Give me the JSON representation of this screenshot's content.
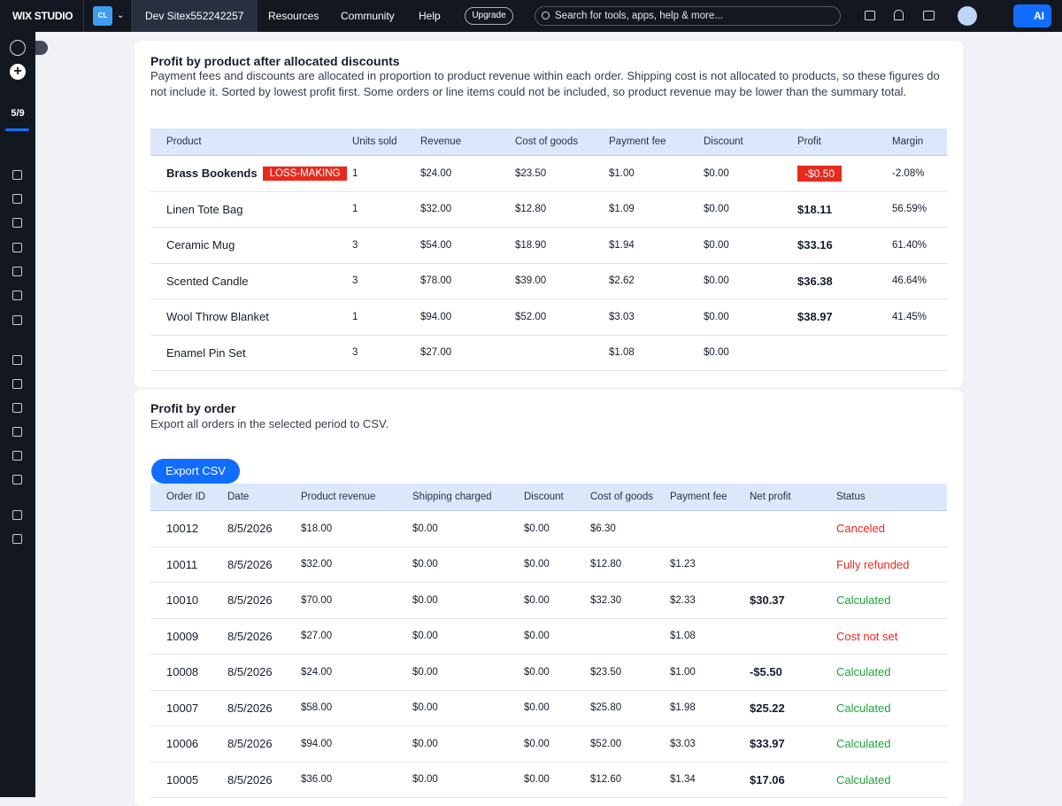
{
  "topbar": {
    "brand": "WIX STUDIO",
    "site_initials": "CL",
    "site_name": "Dev Sitex552242257",
    "nav": [
      "Resources",
      "Community",
      "Help"
    ],
    "upgrade": "Upgrade",
    "search_placeholder": "Search for tools, apps, help & more...",
    "ai_button": "AI"
  },
  "sidebar": {
    "progress": "5/9"
  },
  "products": {
    "title": "Profit by product after allocated discounts",
    "description": "Payment fees and discounts are allocated in proportion to product revenue within each order. Shipping cost is not allocated to products, so these figures do not include it. Sorted by lowest profit first. Some orders or line items could not be included, so product revenue may be lower than the summary total.",
    "columns": [
      "Product",
      "Units sold",
      "Revenue",
      "Cost of goods",
      "Payment fee",
      "Discount",
      "Profit",
      "Margin"
    ],
    "rows": [
      {
        "cells": [
          "Brass Bookends",
          "1",
          "$24.00",
          "$23.50",
          "$1.00",
          "$0.00",
          "-$0.50",
          "-2.08%"
        ],
        "badge": "LOSS-MAKING",
        "badge_color": "#e62a1e"
      },
      {
        "cells": [
          "Linen Tote Bag",
          "1",
          "$32.00",
          "$12.80",
          "$1.09",
          "$0.00",
          "$18.11",
          "56.59%"
        ]
      },
      {
        "cells": [
          "Ceramic Mug",
          "3",
          "$54.00",
          "$18.90",
          "$1.94",
          "$0.00",
          "$33.16",
          "61.40%"
        ]
      },
      {
        "cells": [
          "Scented Candle",
          "3",
          "$78.00",
          "$39.00",
          "$2.62",
          "$0.00",
          "$36.38",
          "46.64%"
        ]
      },
      {
        "cells": [
          "Wool Throw Blanket",
          "1",
          "$94.00",
          "$52.00",
          "$3.03",
          "$0.00",
          "$38.97",
          "41.45%"
        ]
      },
      {
        "cells": [
          "Enamel Pin Set",
          "3",
          "$27.00",
          null,
          "$1.08",
          "$0.00",
          null,
          null
        ]
      }
    ]
  },
  "orders": {
    "title": "Profit by order",
    "subtitle": "Export all orders in the selected period to CSV.",
    "export_button": "Export CSV",
    "columns": [
      "Order ID",
      "Date",
      "Product revenue",
      "Shipping charged",
      "Discount",
      "Cost of goods",
      "Payment fee",
      "Net profit",
      "Status"
    ],
    "rows": [
      {
        "cells": [
          "10012",
          "8/5/2026",
          "$18.00",
          "$0.00",
          "$0.00",
          "$6.30",
          null,
          null,
          "Canceled"
        ],
        "status_color": "#e62a1e"
      },
      {
        "cells": [
          "10011",
          "8/5/2026",
          "$32.00",
          "$0.00",
          "$0.00",
          "$12.80",
          "$1.23",
          null,
          "Fully refunded"
        ],
        "status_color": "#e62a1e"
      },
      {
        "cells": [
          "10010",
          "8/5/2026",
          "$70.00",
          "$0.00",
          "$0.00",
          "$32.30",
          "$2.33",
          "$30.37",
          "Calculated"
        ],
        "status_color": "#1fa33c"
      },
      {
        "cells": [
          "10009",
          "8/5/2026",
          "$27.00",
          "$0.00",
          "$0.00",
          null,
          "$1.08",
          null,
          "Cost not set"
        ],
        "status_color": "#e62a1e"
      },
      {
        "cells": [
          "10008",
          "8/5/2026",
          "$24.00",
          "$0.00",
          "$0.00",
          "$23.50",
          "$1.00",
          "-$5.50",
          "Calculated"
        ],
        "status_color": "#1fa33c"
      },
      {
        "cells": [
          "10007",
          "8/5/2026",
          "$58.00",
          "$0.00",
          "$0.00",
          "$25.80",
          "$1.98",
          "$25.22",
          "Calculated"
        ],
        "status_color": "#1fa33c"
      },
      {
        "cells": [
          "10006",
          "8/5/2026",
          "$94.00",
          "$0.00",
          "$0.00",
          "$52.00",
          "$3.03",
          "$33.97",
          "Calculated"
        ],
        "status_color": "#1fa33c"
      },
      {
        "cells": [
          "10005",
          "8/5/2026",
          "$36.00",
          "$0.00",
          "$0.00",
          "$12.60",
          "$1.34",
          "$17.06",
          "Calculated"
        ],
        "status_color": "#1fa33c"
      }
    ]
  }
}
